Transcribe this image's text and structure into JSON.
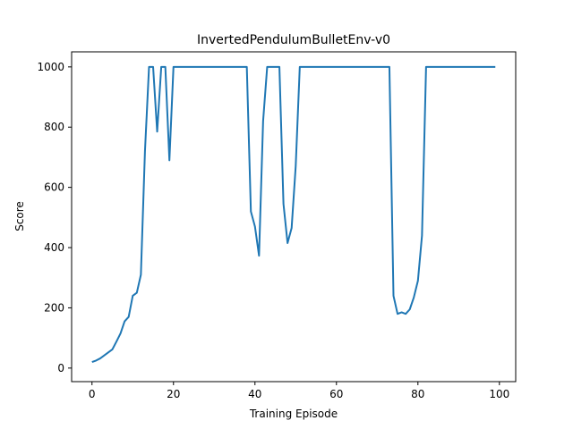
{
  "chart_data": {
    "type": "line",
    "title": "InvertedPendulumBulletEnv-v0",
    "xlabel": "Training Episode",
    "ylabel": "Score",
    "xlim": [
      -5,
      104
    ],
    "ylim": [
      -45,
      1050
    ],
    "xticks": [
      0,
      20,
      40,
      60,
      80,
      100
    ],
    "yticks": [
      0,
      200,
      400,
      600,
      800,
      1000
    ],
    "grid": false,
    "color": "#1f77b4",
    "series": [
      {
        "x": [
          0,
          1,
          2,
          3,
          4,
          5,
          6,
          7,
          8,
          9,
          10,
          11,
          12,
          13,
          14,
          15,
          16,
          17,
          18,
          19,
          20,
          21,
          22,
          23,
          24,
          25,
          26,
          27,
          28,
          29,
          30,
          31,
          32,
          33,
          34,
          35,
          36,
          37,
          38,
          39,
          40,
          41,
          42,
          43,
          44,
          45,
          46,
          47,
          48,
          49,
          50,
          51,
          52,
          53,
          54,
          55,
          56,
          57,
          58,
          59,
          60,
          61,
          62,
          63,
          64,
          65,
          66,
          67,
          68,
          69,
          70,
          71,
          72,
          73,
          74,
          75,
          76,
          77,
          78,
          79,
          80,
          81,
          82,
          83,
          84,
          85,
          86,
          87,
          88,
          89,
          90,
          91,
          92,
          93,
          94,
          95,
          96,
          97,
          98,
          99
        ],
        "values": [
          20,
          25,
          32,
          42,
          52,
          62,
          88,
          115,
          155,
          170,
          240,
          250,
          310,
          720,
          1000,
          1000,
          785,
          1000,
          1000,
          690,
          1000,
          1000,
          1000,
          1000,
          1000,
          1000,
          1000,
          1000,
          1000,
          1000,
          1000,
          1000,
          1000,
          1000,
          1000,
          1000,
          1000,
          1000,
          1000,
          520,
          470,
          373,
          820,
          1000,
          1000,
          1000,
          1000,
          545,
          415,
          465,
          670,
          1000,
          1000,
          1000,
          1000,
          1000,
          1000,
          1000,
          1000,
          1000,
          1000,
          1000,
          1000,
          1000,
          1000,
          1000,
          1000,
          1000,
          1000,
          1000,
          1000,
          1000,
          1000,
          1000,
          240,
          180,
          185,
          180,
          195,
          235,
          290,
          440,
          1000,
          1000,
          1000,
          1000,
          1000,
          1000,
          1000,
          1000,
          1000,
          1000,
          1000,
          1000,
          1000,
          1000,
          1000,
          1000,
          1000,
          1000
        ]
      }
    ]
  }
}
